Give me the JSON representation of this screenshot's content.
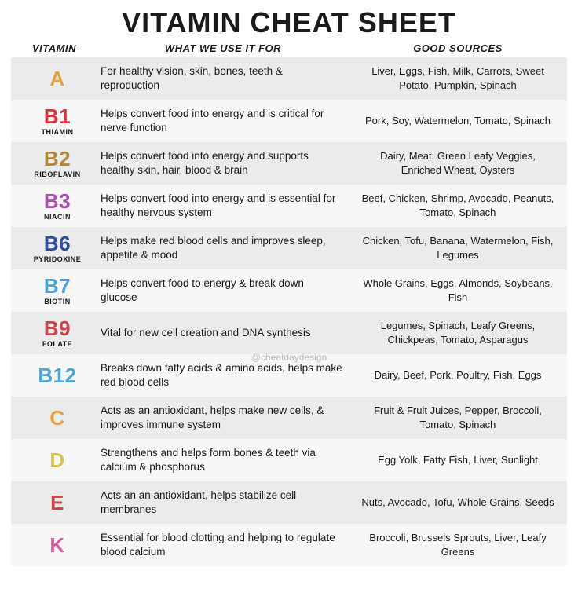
{
  "title": "VITAMIN CHEAT SHEET",
  "headers": {
    "vitamin": "VITAMIN",
    "use": "WHAT WE USE IT FOR",
    "sources": "GOOD SOURCES"
  },
  "watermark": "@cheatdaydesign",
  "colors": {
    "row_odd": "#ebebeb",
    "row_even": "#f7f7f7",
    "text": "#1a1a1a"
  },
  "rows": [
    {
      "code": "A",
      "sub": "",
      "color": "#e6a13c",
      "use": "For healthy vision, skin, bones, teeth & reproduction",
      "sources": "Liver, Eggs, Fish, Milk, Carrots, Sweet Potato, Pumpkin, Spinach"
    },
    {
      "code": "B1",
      "sub": "THIAMIN",
      "color": "#d8343a",
      "use": "Helps convert food into energy and is critical for nerve function",
      "sources": "Pork, Soy, Watermelon, Tomato, Spinach"
    },
    {
      "code": "B2",
      "sub": "RIBOFLAVIN",
      "color": "#b4873a",
      "use": "Helps convert food into energy and supports healthy skin, hair, blood & brain",
      "sources": "Dairy, Meat, Green Leafy Veggies, Enriched Wheat, Oysters"
    },
    {
      "code": "B3",
      "sub": "NIACIN",
      "color": "#a94fb0",
      "use": "Helps convert food into energy and is essential for healthy nervous system",
      "sources": "Beef, Chicken, Shrimp, Avocado, Peanuts, Tomato, Spinach"
    },
    {
      "code": "B6",
      "sub": "PYRIDOXINE",
      "color": "#2f4fa3",
      "use": "Helps make red blood cells and improves sleep, appetite & mood",
      "sources": "Chicken, Tofu, Banana, Watermelon, Fish, Legumes"
    },
    {
      "code": "B7",
      "sub": "BIOTIN",
      "color": "#49a7d8",
      "use": "Helps convert food to energy & break down glucose",
      "sources": "Whole Grains, Eggs, Almonds, Soybeans, Fish"
    },
    {
      "code": "B9",
      "sub": "FOLATE",
      "color": "#c9474d",
      "use": "Vital for new cell creation and DNA synthesis",
      "sources": "Legumes, Spinach, Leafy Greens, Chickpeas, Tomato, Asparagus"
    },
    {
      "code": "B12",
      "sub": "",
      "color": "#49a7d8",
      "use": "Breaks down fatty acids & amino acids, helps make red blood cells",
      "sources": "Dairy, Beef, Pork, Poultry, Fish, Eggs"
    },
    {
      "code": "C",
      "sub": "",
      "color": "#e6a13c",
      "use": "Acts as an antioxidant, helps make new cells, & improves immune system",
      "sources": "Fruit & Fruit Juices, Pepper, Broccoli, Tomato, Spinach"
    },
    {
      "code": "D",
      "sub": "",
      "color": "#d6c24a",
      "use": "Strengthens and helps form bones & teeth via calcium & phosphorus",
      "sources": "Egg Yolk, Fatty Fish, Liver, Sunlight"
    },
    {
      "code": "E",
      "sub": "",
      "color": "#c9474d",
      "use": "Acts an an antioxidant, helps stabilize cell membranes",
      "sources": "Nuts, Avocado, Tofu, Whole Grains, Seeds"
    },
    {
      "code": "K",
      "sub": "",
      "color": "#d85a9e",
      "use": "Essential for blood clotting and helping to regulate blood calcium",
      "sources": "Broccoli, Brussels Sprouts, Liver, Leafy Greens"
    }
  ]
}
